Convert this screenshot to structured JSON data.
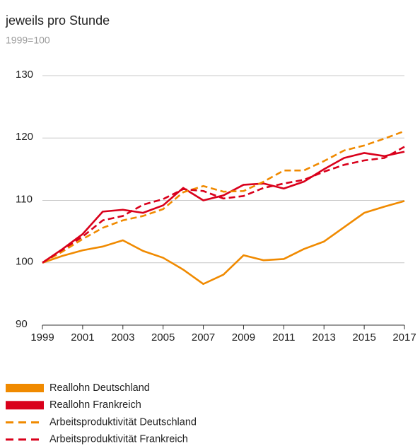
{
  "chart_data": {
    "type": "line",
    "subtitle": "jeweils pro Stunde",
    "note": "1999=100",
    "x": [
      1999,
      2000,
      2001,
      2002,
      2003,
      2004,
      2005,
      2006,
      2007,
      2008,
      2009,
      2010,
      2011,
      2012,
      2013,
      2014,
      2015,
      2016,
      2017
    ],
    "xlim": [
      1999,
      2017
    ],
    "xticks": [
      1999,
      2001,
      2003,
      2005,
      2007,
      2009,
      2011,
      2013,
      2015,
      2017
    ],
    "ylim": [
      90,
      130
    ],
    "yticks": [
      90,
      100,
      110,
      120,
      130
    ],
    "grid": true,
    "series": [
      {
        "name": "Reallohn Deutschland",
        "color": "#f08a00",
        "dashed": false,
        "values": [
          100,
          101.1,
          102,
          102.6,
          103.6,
          101.9,
          100.8,
          98.9,
          96.6,
          98.1,
          101.2,
          100.4,
          100.6,
          102.2,
          103.4,
          105.7,
          108,
          109,
          109.9
        ]
      },
      {
        "name": "Reallohn Frankreich",
        "color": "#d9001b",
        "dashed": false,
        "values": [
          100,
          102.2,
          104.6,
          108.2,
          108.5,
          108,
          109.2,
          112,
          110,
          110.8,
          112.5,
          112.7,
          111.9,
          113,
          115,
          116.8,
          117.6,
          117.1,
          117.8
        ]
      },
      {
        "name": "Arbeitsproduktivität Deutschland",
        "color": "#f08a00",
        "dashed": true,
        "values": [
          100,
          101.8,
          103.8,
          105.6,
          106.8,
          107.5,
          108.6,
          111.3,
          112.3,
          111.4,
          111.5,
          113,
          114.8,
          114.8,
          116.3,
          118,
          118.8,
          119.9,
          121.1
        ]
      },
      {
        "name": "Arbeitsproduktivität Frankreich",
        "color": "#d9001b",
        "dashed": true,
        "values": [
          100,
          102.1,
          104.2,
          106.8,
          107.5,
          109.3,
          110.2,
          111.8,
          111.5,
          110.3,
          110.7,
          112,
          112.7,
          113.3,
          114.6,
          115.7,
          116.4,
          116.8,
          118.6
        ]
      }
    ]
  }
}
